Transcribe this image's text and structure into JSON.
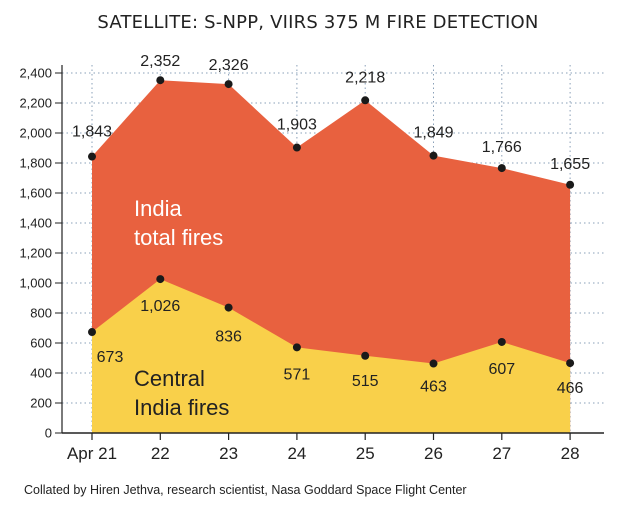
{
  "colors": {
    "total_area": "#e8613f",
    "central_area": "#f9d04a",
    "grid": "#8aa0b8",
    "marker": "#1a1a1a",
    "axis": "#222222",
    "total_label_text": "#ffffff",
    "central_label_text": "#222222"
  },
  "chart_data": {
    "type": "area",
    "title": "SATELLITE: S-NPP, VIIRS 375 M FIRE DETECTION",
    "categories": [
      "Apr 21",
      "22",
      "23",
      "24",
      "25",
      "26",
      "27",
      "28"
    ],
    "series": [
      {
        "name": "India total fires",
        "values": [
          1843,
          2352,
          2326,
          1903,
          2218,
          1849,
          1766,
          1655
        ]
      },
      {
        "name": "Central India fires",
        "values": [
          673,
          1026,
          836,
          571,
          515,
          463,
          607,
          466
        ]
      }
    ],
    "data_labels": {
      "total": [
        "1,843",
        "2,352",
        "2,326",
        "1,903",
        "2,218",
        "1,849",
        "1,766",
        "1,655"
      ],
      "central": [
        "673",
        "1,026",
        "836",
        "571",
        "515",
        "463",
        "607",
        "466"
      ]
    },
    "yticks": [
      "0",
      "200",
      "400",
      "600",
      "800",
      "1,000",
      "1,200",
      "1,400",
      "1,600",
      "1,800",
      "2,000",
      "2,200",
      "2,400"
    ],
    "ylim": [
      0,
      2400
    ],
    "grid": true,
    "area_labels": {
      "total": [
        "India",
        "total fires"
      ],
      "central": [
        "Central",
        "India fires"
      ]
    },
    "source": "Collated by Hiren Jethva, research scientist, Nasa Goddard Space Flight Center"
  }
}
